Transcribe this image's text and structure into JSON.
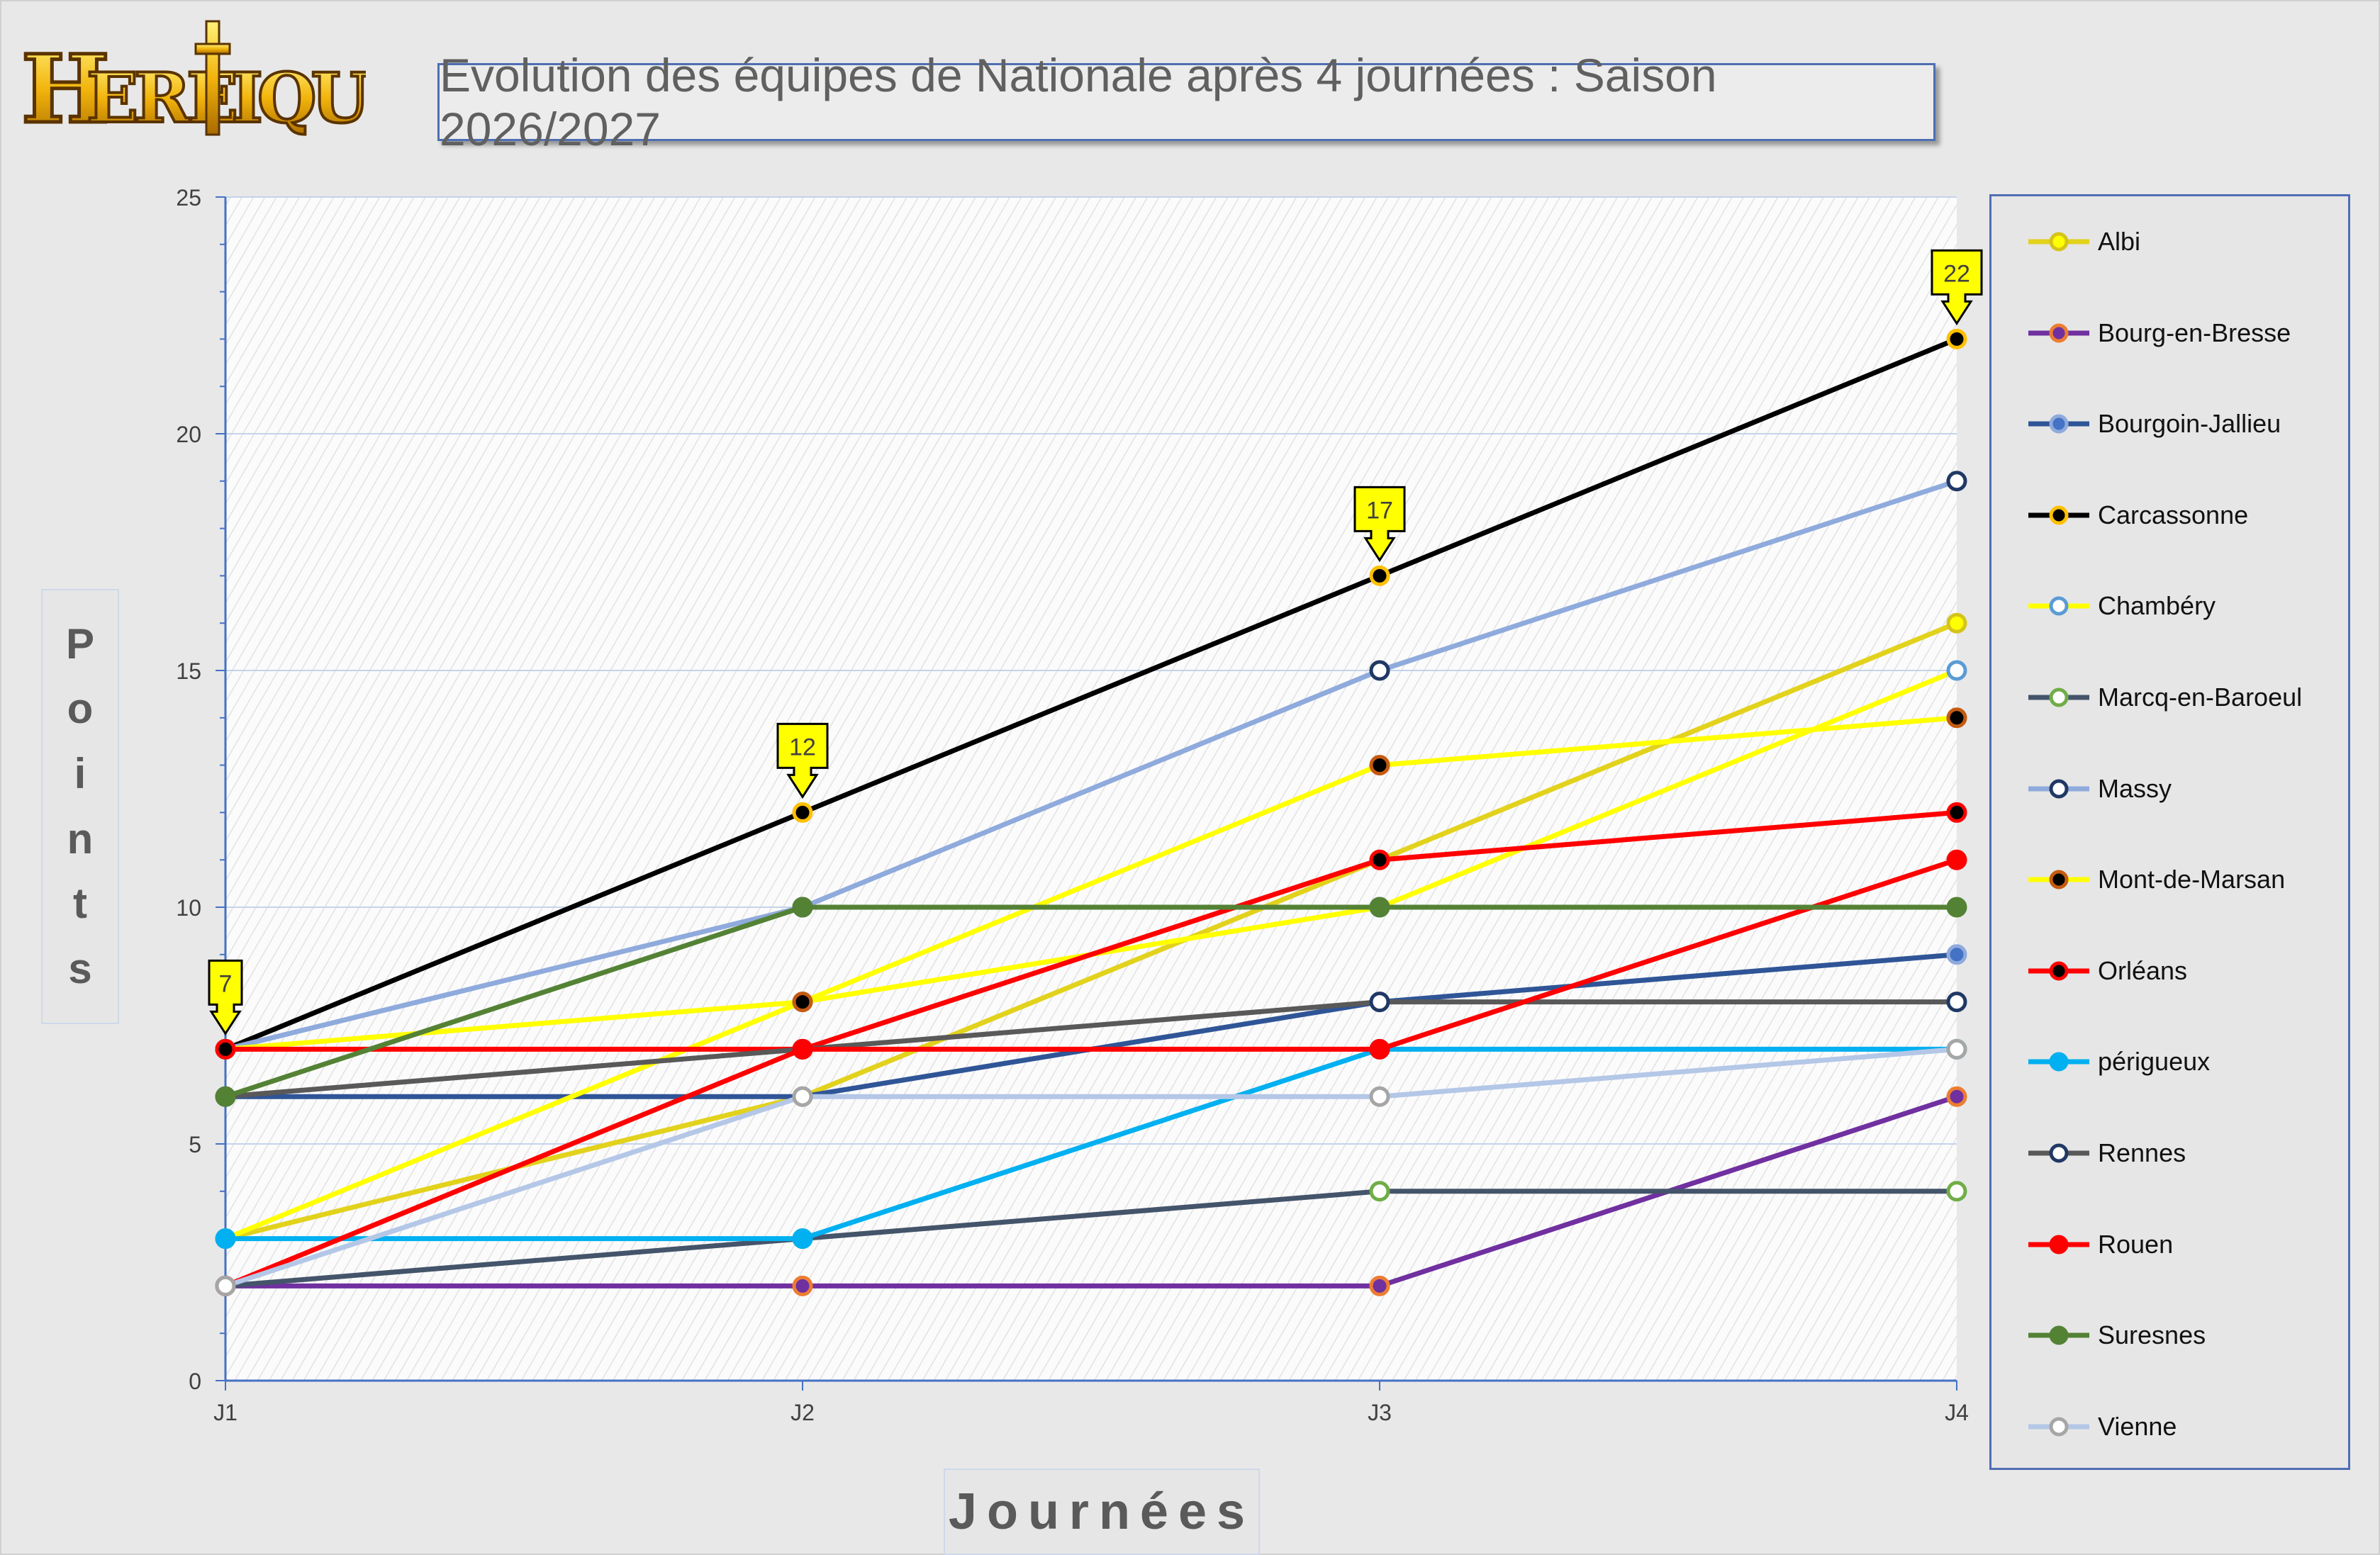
{
  "title": "Evolution des équipes de Nationale après 4 journées : Saison 2026/2027",
  "logo_text": "Heretiques",
  "y_axis_label": "Points",
  "x_axis_label": "Journées",
  "chart_data": {
    "type": "line",
    "categories": [
      "J1",
      "J2",
      "J3",
      "J4"
    ],
    "ylim": [
      0,
      25
    ],
    "y_ticks": [
      0,
      5,
      10,
      15,
      20,
      25
    ],
    "grid": true,
    "legend_position": "right",
    "series": [
      {
        "name": "Albi",
        "values": [
          3,
          6,
          11,
          16
        ],
        "color": "#e2d21c",
        "marker_fill": "#ffff00",
        "marker_stroke": "#d4c41a"
      },
      {
        "name": "Bourg-en-Bresse",
        "values": [
          2,
          2,
          2,
          6
        ],
        "color": "#7030a0",
        "marker_fill": "#7030a0",
        "marker_stroke": "#ed7d31"
      },
      {
        "name": "Bourgoin-Jallieu",
        "values": [
          6,
          6,
          8,
          9
        ],
        "color": "#2f5597",
        "marker_fill": "#4472c4",
        "marker_stroke": "#8faadc"
      },
      {
        "name": "Carcassonne",
        "values": [
          7,
          12,
          17,
          22
        ],
        "color": "#000000",
        "marker_fill": "#000000",
        "marker_stroke": "#ffc000"
      },
      {
        "name": "Chambéry",
        "values": [
          3,
          8,
          10,
          15
        ],
        "color": "#ffff00",
        "marker_fill": "#ffffff",
        "marker_stroke": "#5b9bd5"
      },
      {
        "name": "Marcq-en-Baroeul",
        "values": [
          2,
          3,
          4,
          4
        ],
        "color": "#44546a",
        "marker_fill": "#ffffff",
        "marker_stroke": "#70ad47"
      },
      {
        "name": "Massy",
        "values": [
          7,
          10,
          15,
          19
        ],
        "color": "#8faadc",
        "marker_fill": "#ffffff",
        "marker_stroke": "#203864"
      },
      {
        "name": "Mont-de-Marsan",
        "values": [
          7,
          8,
          13,
          14
        ],
        "color": "#ffff00",
        "marker_fill": "#000000",
        "marker_stroke": "#c55a11"
      },
      {
        "name": "Orléans",
        "values": [
          7,
          7,
          11,
          12
        ],
        "color": "#ff0000",
        "marker_fill": "#000000",
        "marker_stroke": "#ff0000"
      },
      {
        "name": "périgueux",
        "values": [
          3,
          3,
          7,
          7
        ],
        "color": "#00b0f0",
        "marker_fill": "#00b0f0",
        "marker_stroke": "#00b0f0"
      },
      {
        "name": "Rennes",
        "values": [
          6,
          7,
          8,
          8
        ],
        "color": "#595959",
        "marker_fill": "#ffffff",
        "marker_stroke": "#203864"
      },
      {
        "name": "Rouen",
        "values": [
          2,
          7,
          7,
          11
        ],
        "color": "#ff0000",
        "marker_fill": "#ff0000",
        "marker_stroke": "#ff0000"
      },
      {
        "name": "Suresnes",
        "values": [
          6,
          10,
          10,
          10
        ],
        "color": "#548235",
        "marker_fill": "#548235",
        "marker_stroke": "#548235"
      },
      {
        "name": "Vienne",
        "values": [
          2,
          6,
          6,
          7
        ],
        "color": "#b4c7e7",
        "marker_fill": "#ffffff",
        "marker_stroke": "#a6a6a6"
      }
    ],
    "annotations": [
      {
        "text": "7",
        "x": "J1",
        "y": 7
      },
      {
        "text": "12",
        "x": "J2",
        "y": 12
      },
      {
        "text": "17",
        "x": "J3",
        "y": 17
      },
      {
        "text": "22",
        "x": "J4",
        "y": 22
      }
    ]
  }
}
